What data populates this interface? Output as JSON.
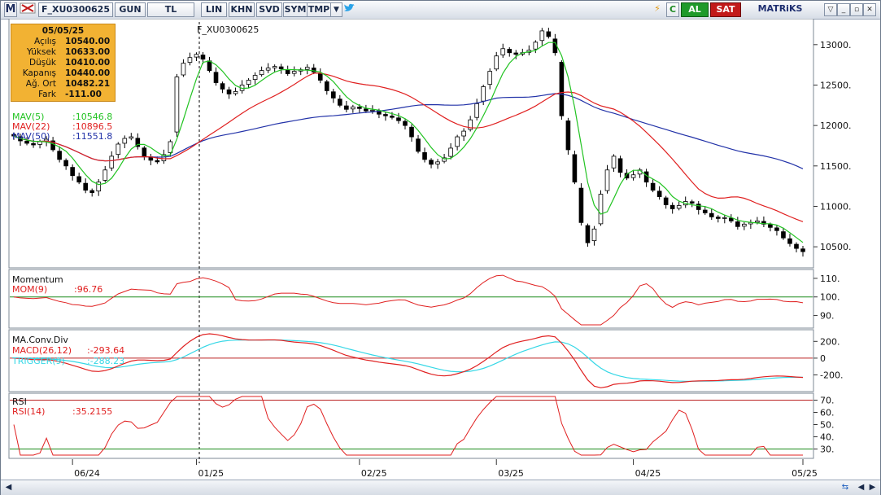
{
  "toolbar": {
    "logo": "M",
    "symbol": "F_XU0300625",
    "period": "GUN",
    "currency": "TL",
    "buttons": [
      "LIN",
      "KHN",
      "SVD",
      "SYM",
      "TMP"
    ],
    "buy_label": "AL",
    "sell_label": "SAT",
    "brand": "MATRiKS"
  },
  "chart_title": "F_XU0300625",
  "info_box": {
    "date": "05/05/25",
    "rows": [
      {
        "label": "Açılış",
        "value": "10540.00"
      },
      {
        "label": "Yüksek",
        "value": "10633.00"
      },
      {
        "label": "Düşük",
        "value": "10410.00"
      },
      {
        "label": "Kapanış",
        "value": "10440.00"
      },
      {
        "label": "Ağ. Ort",
        "value": "10482.21"
      },
      {
        "label": "Fark",
        "value": "-111.00"
      }
    ]
  },
  "legend": {
    "mav5": "MAV(5)",
    "mav5_value": ":10546.8",
    "mav22": "MAV(22)",
    "mav22_value": ":10896.5",
    "mav50": "MAV(50)",
    "mav50_value": ":11551.8"
  },
  "momentum_panel": {
    "title": "Momentum",
    "series": "MOM(9)",
    "value": ":96.76"
  },
  "macd_panel": {
    "title": "MA.Conv.Div",
    "macd": "MACD(26,12)",
    "macd_value": ":-293.64",
    "trigger": "TRIGGER(9)",
    "trigger_value": ":-288.23"
  },
  "rsi_panel": {
    "title": "RSI",
    "series": "RSI(14)",
    "value": ":35.2155"
  },
  "colors": {
    "mav5": "#22c322",
    "mav22": "#e02020",
    "mav50": "#2232a8",
    "trigger": "#35d7e6",
    "up_candle": "#ffffff",
    "down_candle": "#000000",
    "info_bg": "#f2b233",
    "ref_line": "#1a8a1a"
  },
  "chart_data": [
    {
      "type": "candlestick",
      "title": "F_XU0300625",
      "x_ticks": [
        "06/24",
        "01/25",
        "02/25",
        "03/25",
        "04/25",
        "05/25"
      ],
      "y_ticks": [
        "10500.",
        "11000.",
        "11500.",
        "12000.",
        "12500.",
        "13000."
      ],
      "ylim": [
        10300,
        13280
      ],
      "closes": [
        11870,
        11810,
        11780,
        11760,
        11800,
        11830,
        11700,
        11580,
        11500,
        11380,
        11300,
        11200,
        11170,
        11300,
        11450,
        11620,
        11770,
        11840,
        11860,
        11740,
        11620,
        11570,
        11550,
        11640,
        11800,
        12600,
        12770,
        12840,
        12880,
        12820,
        12680,
        12530,
        12450,
        12390,
        12420,
        12500,
        12560,
        12620,
        12680,
        12710,
        12730,
        12700,
        12640,
        12670,
        12690,
        12720,
        12660,
        12560,
        12430,
        12340,
        12250,
        12200,
        12230,
        12210,
        12180,
        12190,
        12140,
        12120,
        12100,
        12060,
        12000,
        11860,
        11680,
        11580,
        11520,
        11550,
        11600,
        11720,
        11860,
        11930,
        12070,
        12270,
        12480,
        12670,
        12860,
        12950,
        12900,
        12880,
        12900,
        12930,
        13030,
        13170,
        13100,
        12900,
        12120,
        11700,
        11300,
        10800,
        10550,
        10720,
        11150,
        11450,
        11620,
        11420,
        11350,
        11390,
        11450,
        11300,
        11200,
        11120,
        11020,
        10970,
        11010,
        11060,
        11040,
        10960,
        10920,
        10870,
        10850,
        10860,
        10820,
        10750,
        10780,
        10800,
        10820,
        10780,
        10740,
        10700,
        10610,
        10540,
        10480,
        10440
      ],
      "series": [
        {
          "name": "MAV(5)",
          "last": 10546.8
        },
        {
          "name": "MAV(22)",
          "last": 10896.5
        },
        {
          "name": "MAV(50)",
          "last": 11551.8
        }
      ]
    },
    {
      "type": "line",
      "title": "Momentum",
      "series": [
        {
          "name": "MOM(9)",
          "last": 96.76
        }
      ],
      "y_ticks": [
        "110.",
        "100.",
        "90."
      ],
      "reference": 100
    },
    {
      "type": "line",
      "title": "MA.Conv.Div",
      "series": [
        {
          "name": "MACD(26,12)",
          "last": -293.64
        },
        {
          "name": "TRIGGER(9)",
          "last": -288.23
        }
      ],
      "y_ticks": [
        "200.",
        "0",
        "-200."
      ],
      "reference": 0
    },
    {
      "type": "line",
      "title": "RSI",
      "series": [
        {
          "name": "RSI(14)",
          "last": 35.2155
        }
      ],
      "y_ticks": [
        "70.",
        "60.",
        "50.",
        "40.",
        "30."
      ],
      "ylim": [
        25,
        73
      ],
      "reference_lines": [
        70,
        30
      ]
    }
  ]
}
